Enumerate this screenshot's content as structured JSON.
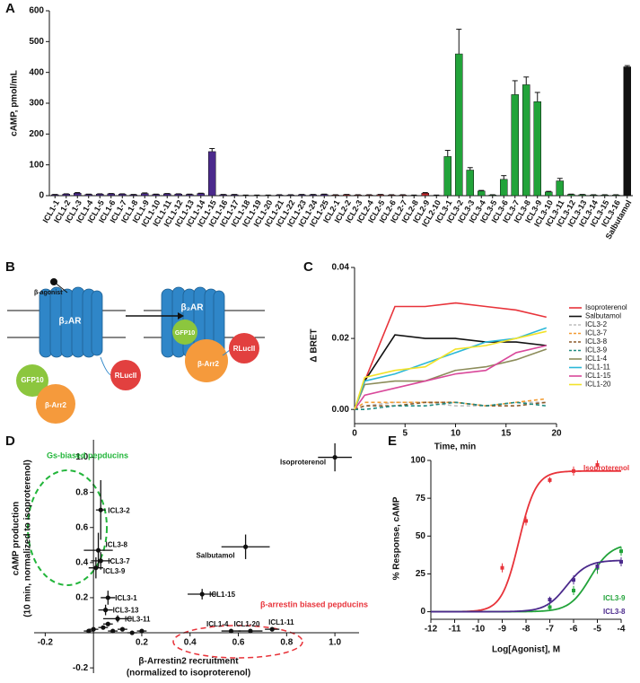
{
  "chart_data": [
    {
      "panel": "A",
      "type": "bar",
      "y_label": "cAMP, pmol/mL",
      "categories": [
        "ICL1-1",
        "ICL1-2",
        "ICL1-3",
        "ICL1-4",
        "ICL1-5",
        "ICL1-6",
        "ICL1-7",
        "ICL1-8",
        "ICL1-9",
        "ICL1-10",
        "ICL1-11",
        "ICL1-12",
        "ICL1-13",
        "ICL1-14",
        "ICL1-15",
        "ICL1-16",
        "ICL1-17",
        "ICL1-18",
        "ICL1-19",
        "ICL1-20",
        "ICL1-21",
        "ICL1-22",
        "ICL1-23",
        "ICL1-24",
        "ICL1-25",
        "ICL2-1",
        "ICL2-2",
        "ICL2-3",
        "ICL2-4",
        "ICL2-5",
        "ICL2-6",
        "ICL2-7",
        "ICL2-8",
        "ICL2-9",
        "ICL2-10",
        "ICL3-1",
        "ICL3-2",
        "ICL3-3",
        "ICL3-4",
        "ICL3-5",
        "ICL3-6",
        "ICL3-7",
        "ICL3-8",
        "ICL3-9",
        "ICL3-10",
        "ICL3-11",
        "ICL3-12",
        "ICL3-13",
        "ICL3-14",
        "ICL3-15",
        "ICL3-16",
        "Salbutamol"
      ],
      "values": [
        3,
        5,
        8,
        4,
        5,
        6,
        5,
        3,
        7,
        4,
        6,
        5,
        4,
        7,
        143,
        3,
        3,
        1,
        1,
        1,
        2,
        2,
        3,
        3,
        4,
        2,
        3,
        2,
        2,
        3,
        2,
        2,
        1,
        8,
        1,
        127,
        460,
        83,
        15,
        2,
        53,
        328,
        360,
        305,
        12,
        48,
        4,
        3,
        2,
        2,
        2,
        418
      ],
      "errors": [
        1,
        1,
        2,
        1,
        1,
        1,
        1,
        1,
        2,
        1,
        1,
        1,
        1,
        1,
        10,
        1,
        1,
        1,
        1,
        1,
        1,
        1,
        1,
        1,
        1,
        1,
        1,
        1,
        1,
        1,
        1,
        1,
        1,
        2,
        1,
        20,
        80,
        8,
        2,
        1,
        12,
        45,
        25,
        30,
        2,
        8,
        1,
        1,
        1,
        1,
        1,
        4
      ],
      "colors": [
        "#4b2a8c",
        "#4b2a8c",
        "#4b2a8c",
        "#4b2a8c",
        "#4b2a8c",
        "#4b2a8c",
        "#4b2a8c",
        "#4b2a8c",
        "#4b2a8c",
        "#4b2a8c",
        "#4b2a8c",
        "#4b2a8c",
        "#4b2a8c",
        "#4b2a8c",
        "#4b2a8c",
        "#4b2a8c",
        "#4b2a8c",
        "#4b2a8c",
        "#4b2a8c",
        "#4b2a8c",
        "#4b2a8c",
        "#4b2a8c",
        "#4b2a8c",
        "#4b2a8c",
        "#4b2a8c",
        "#c0282d",
        "#c0282d",
        "#c0282d",
        "#c0282d",
        "#c0282d",
        "#c0282d",
        "#c0282d",
        "#c0282d",
        "#c0282d",
        "#c0282d",
        "#22a33a",
        "#22a33a",
        "#22a33a",
        "#22a33a",
        "#22a33a",
        "#22a33a",
        "#22a33a",
        "#22a33a",
        "#22a33a",
        "#22a33a",
        "#22a33a",
        "#22a33a",
        "#22a33a",
        "#22a33a",
        "#22a33a",
        "#22a33a",
        "#111111"
      ],
      "ylim": [
        0,
        600
      ],
      "yticks": [
        0,
        100,
        200,
        300,
        400,
        500,
        600
      ]
    },
    {
      "panel": "C",
      "type": "line",
      "x_label": "Time, min",
      "y_label": "Δ BRET",
      "xlim": [
        0,
        20
      ],
      "xticks": [
        0,
        5,
        10,
        15,
        20
      ],
      "ylim": [
        -0.004,
        0.04
      ],
      "yticks": [
        {
          "value": 0,
          "label": "0.00"
        },
        {
          "value": 0.02,
          "label": "0.02"
        },
        {
          "value": 0.04,
          "label": "0.04"
        }
      ],
      "x": [
        0,
        1,
        4,
        7,
        10,
        13,
        16,
        19
      ],
      "series": [
        {
          "name": "Isoproterenol",
          "color": "#e8333a",
          "dash": false,
          "values": [
            0,
            0.008,
            0.029,
            0.029,
            0.03,
            0.029,
            0.028,
            0.026
          ]
        },
        {
          "name": "Salbutamol",
          "color": "#111111",
          "dash": false,
          "values": [
            0,
            0.008,
            0.021,
            0.02,
            0.02,
            0.019,
            0.019,
            0.018
          ]
        },
        {
          "name": "ICL3-2",
          "color": "#bdbdbd",
          "dash": true,
          "values": [
            0,
            0.001,
            0.002,
            0.002,
            0.001,
            0.001,
            0.002,
            0.002
          ]
        },
        {
          "name": "ICL3-7",
          "color": "#f39c32",
          "dash": true,
          "values": [
            0,
            0.002,
            0.002,
            0.002,
            0.002,
            0.001,
            0.002,
            0.003
          ]
        },
        {
          "name": "ICL3-8",
          "color": "#8b5a2b",
          "dash": true,
          "values": [
            0,
            0.001,
            0.001,
            0.002,
            0.002,
            0.001,
            0.001,
            0.002
          ]
        },
        {
          "name": "ICL3-9",
          "color": "#1f8a80",
          "dash": true,
          "values": [
            0,
            0.0,
            0.001,
            0.001,
            0.002,
            0.001,
            0.002,
            0.001
          ]
        },
        {
          "name": "ICL1-4",
          "color": "#8c8c5a",
          "dash": false,
          "values": [
            0,
            0.007,
            0.008,
            0.008,
            0.011,
            0.012,
            0.014,
            0.017
          ]
        },
        {
          "name": "ICL1-11",
          "color": "#2bb8d8",
          "dash": false,
          "values": [
            0,
            0.008,
            0.01,
            0.013,
            0.016,
            0.019,
            0.02,
            0.023
          ]
        },
        {
          "name": "ICL1-15",
          "color": "#d9489a",
          "dash": false,
          "values": [
            0,
            0.004,
            0.006,
            0.008,
            0.01,
            0.011,
            0.016,
            0.018
          ]
        },
        {
          "name": "ICL1-20",
          "color": "#f2e229",
          "dash": false,
          "values": [
            0,
            0.009,
            0.011,
            0.012,
            0.017,
            0.018,
            0.02,
            0.022
          ]
        }
      ]
    },
    {
      "panel": "D",
      "type": "scatter",
      "origin_axes": true,
      "x_label": [
        "β-Arrestin2 recruitment",
        "(normalized to isoproterenol)"
      ],
      "y_label": [
        "cAMP production",
        "(10 min, normalized to isoproterenol)"
      ],
      "xlim": [
        -0.246,
        1.1
      ],
      "ylim": [
        -0.23,
        1.1
      ],
      "xticks": [
        -0.2,
        0.2,
        0.4,
        0.6,
        0.8,
        {
          "value": 1,
          "label": "1.0"
        }
      ],
      "yticks": [
        -0.2,
        0.2,
        0.4,
        0.6,
        0.8,
        {
          "value": 1,
          "label": "1.0"
        }
      ],
      "color": "#111111",
      "x": [
        1.0,
        0.63,
        0.45,
        0.03,
        0.02,
        0.03,
        0.01,
        0.06,
        0.05,
        0.1,
        0.57,
        0.65,
        0.74,
        0.0,
        0.04,
        0.08,
        0.12,
        0.16,
        0.2,
        -0.02,
        0.06
      ],
      "y": [
        1.0,
        0.49,
        0.22,
        0.7,
        0.47,
        0.41,
        0.37,
        0.2,
        0.13,
        0.08,
        0.01,
        0.01,
        0.02,
        0.02,
        0.03,
        0.01,
        0.02,
        0.0,
        0.01,
        0.01,
        0.05
      ],
      "xerr": [
        0.07,
        0.1,
        0.06,
        0.02,
        0.06,
        0.04,
        0.03,
        0.03,
        0.03,
        0.06,
        0.04,
        0.05,
        0.03,
        0.02,
        0.02,
        0.02,
        0.02,
        0.02,
        0.02,
        0.02,
        0.02
      ],
      "yerr": [
        0.08,
        0.07,
        0.03,
        0.17,
        0.1,
        0.05,
        0.06,
        0.04,
        0.03,
        0.02,
        0.01,
        0.01,
        0.01,
        0.01,
        0.01,
        0.01,
        0.01,
        0.01,
        0.01,
        0.01,
        0.01
      ],
      "labels": [
        "Isoproterenol",
        "Salbutamol",
        "ICL1-15",
        "ICL3-2",
        "ICL3-8",
        "ICL3-7",
        "ICL3-9",
        "ICL3-1",
        "ICL3-13",
        "ICL3-11",
        "ICL1-4",
        "ICL1-20",
        "ICL1-11",
        null,
        null,
        null,
        null,
        null,
        null,
        null,
        null
      ],
      "annotations": [
        {
          "text": "Gs-biased pepducins",
          "color": "#22b53a"
        },
        {
          "text": "β-arrestin biased pepducins",
          "color": "#e8333a"
        }
      ]
    },
    {
      "panel": "E",
      "type": "scatter",
      "origin_axes": false,
      "x_label": "Log[Agonist], M",
      "y_label": "% Response, cAMP",
      "xlim": [
        -12,
        -4
      ],
      "xticks": [
        -12,
        -11,
        -10,
        -9,
        -8,
        -7,
        -6,
        -5,
        -4
      ],
      "ylim": [
        -5,
        100
      ],
      "yticks": [
        0,
        25,
        50,
        75,
        100
      ],
      "series": [
        {
          "name": "Isoproterenol",
          "color": "#e8333a",
          "x": [
            -9,
            -8,
            -7,
            -6,
            -5
          ],
          "values": [
            29,
            60,
            87,
            93,
            97
          ],
          "errors": [
            3,
            3,
            2,
            3,
            3
          ],
          "fit": {
            "bottom": 0,
            "top": 93,
            "logec50": -8.3,
            "hill": 1.2
          }
        },
        {
          "name": "ICL3-9",
          "color": "#22a33a",
          "x": [
            -7,
            -6,
            -5,
            -4
          ],
          "values": [
            3,
            14,
            29,
            40
          ],
          "errors": [
            2,
            3,
            4,
            3
          ],
          "fit": {
            "bottom": 0,
            "top": 45,
            "logec50": -5.3,
            "hill": 1
          }
        },
        {
          "name": "ICL3-8",
          "color": "#4b2a8c",
          "x": [
            -7,
            -6,
            -5,
            -4
          ],
          "values": [
            8,
            21,
            30,
            33
          ],
          "errors": [
            2,
            3,
            3,
            3
          ],
          "fit": {
            "bottom": 0,
            "top": 34,
            "logec50": -6.3,
            "hill": 1
          }
        }
      ]
    }
  ],
  "diagram": {
    "panel": "B",
    "labels": [
      "β-agonist",
      "β₂AR",
      "RLucII",
      "GFP10",
      "β-Arr2",
      "β₂AR",
      "GFP10",
      "β-Arr2",
      "RLucII"
    ]
  }
}
